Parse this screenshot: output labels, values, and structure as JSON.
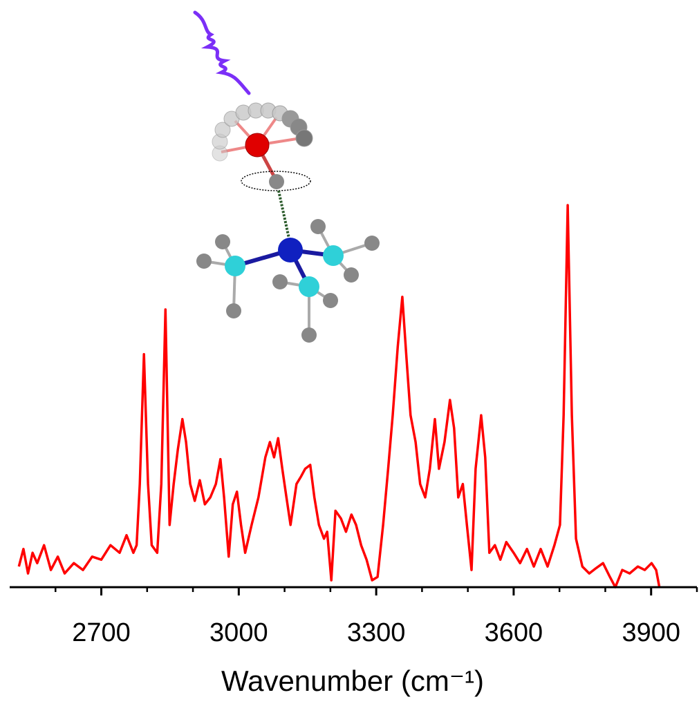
{
  "chart_data": {
    "type": "line",
    "x_label": "Wavenumber (cm⁻¹)",
    "xlim": [
      2500,
      4000
    ],
    "xticks": [
      2700,
      3000,
      3300,
      3600,
      3900
    ],
    "xticks_minor": [
      2600,
      2800,
      2900,
      3100,
      3200,
      3400,
      3500,
      3700,
      3800,
      4000
    ],
    "ylim": [
      0,
      1
    ],
    "series": [
      {
        "color": "#ff0000",
        "x": [
          2520,
          2530,
          2540,
          2550,
          2560,
          2575,
          2590,
          2605,
          2620,
          2640,
          2660,
          2680,
          2700,
          2720,
          2740,
          2755,
          2770,
          2777,
          2784,
          2793,
          2802,
          2810,
          2822,
          2831,
          2840,
          2849,
          2858,
          2867,
          2877,
          2885,
          2894,
          2904,
          2915,
          2926,
          2938,
          2950,
          2960,
          2968,
          2978,
          2987,
          2996,
          3005,
          3014,
          3028,
          3043,
          3058,
          3068,
          3077,
          3086,
          3095,
          3104,
          3113,
          3126,
          3136,
          3145,
          3156,
          3165,
          3175,
          3186,
          3193,
          3202,
          3211,
          3223,
          3234,
          3246,
          3256,
          3267,
          3279,
          3291,
          3303,
          3315,
          3326,
          3336,
          3347,
          3357,
          3366,
          3375,
          3386,
          3396,
          3407,
          3417,
          3428,
          3437,
          3449,
          3461,
          3470,
          3479,
          3489,
          3498,
          3508,
          3517,
          3529,
          3538,
          3547,
          3559,
          3571,
          3584,
          3600,
          3614,
          3629,
          3644,
          3659,
          3674,
          3689,
          3701,
          3709,
          3718,
          3727,
          3736,
          3750,
          3765,
          3780,
          3795,
          3810,
          3822,
          3837,
          3853,
          3871,
          3886,
          3901,
          3911,
          3918
        ],
        "values": [
          0.054,
          0.1,
          0.036,
          0.09,
          0.063,
          0.11,
          0.045,
          0.08,
          0.036,
          0.063,
          0.045,
          0.08,
          0.072,
          0.11,
          0.09,
          0.136,
          0.09,
          0.11,
          0.27,
          0.61,
          0.27,
          0.11,
          0.09,
          0.27,
          0.727,
          0.163,
          0.27,
          0.36,
          0.44,
          0.38,
          0.27,
          0.226,
          0.28,
          0.217,
          0.235,
          0.27,
          0.335,
          0.235,
          0.08,
          0.217,
          0.25,
          0.163,
          0.09,
          0.163,
          0.235,
          0.34,
          0.38,
          0.34,
          0.39,
          0.31,
          0.235,
          0.163,
          0.27,
          0.29,
          0.31,
          0.32,
          0.235,
          0.163,
          0.127,
          0.145,
          0.018,
          0.2,
          0.18,
          0.145,
          0.19,
          0.163,
          0.11,
          0.072,
          0.018,
          0.027,
          0.163,
          0.31,
          0.45,
          0.63,
          0.76,
          0.6,
          0.45,
          0.38,
          0.27,
          0.235,
          0.31,
          0.44,
          0.31,
          0.38,
          0.49,
          0.416,
          0.235,
          0.27,
          0.163,
          0.045,
          0.31,
          0.45,
          0.34,
          0.09,
          0.11,
          0.072,
          0.118,
          0.09,
          0.063,
          0.1,
          0.054,
          0.1,
          0.054,
          0.11,
          0.163,
          0.45,
          1.0,
          0.45,
          0.127,
          0.054,
          0.036,
          0.05,
          0.063,
          0.027,
          0,
          0.045,
          0.036,
          0.054,
          0.045,
          0.063,
          0.045,
          0
        ]
      }
    ]
  }
}
